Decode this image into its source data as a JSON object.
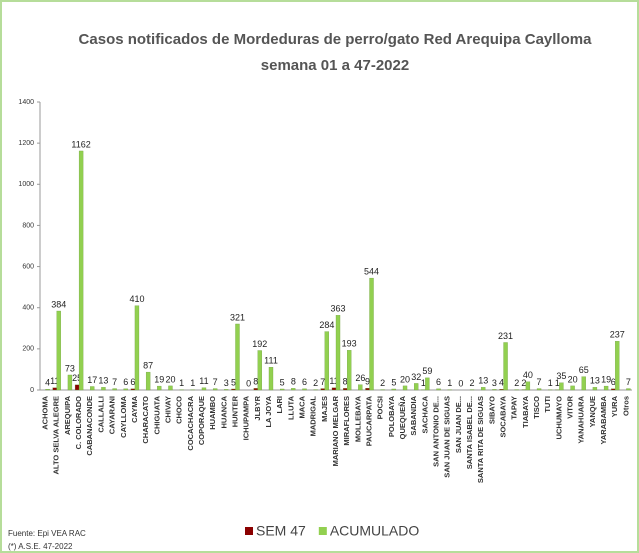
{
  "chart_data": {
    "type": "bar",
    "title": "Casos notificados de Mordeduras de perro/gato Red Arequipa Caylloma",
    "subtitle": "semana 01 a 47-2022",
    "categories": [
      "ACHOMA",
      "ALTO SELVA ALEGRE",
      "AREQUIPA",
      "C. COLORADO",
      "CABANACONDE",
      "CALLALLI",
      "CAYARANI",
      "CAYLLOMA",
      "CAYMA",
      "CHARACATO",
      "CHIGUATA",
      "CHIVAY",
      "CHOCO",
      "COCACHACRA",
      "COPORAQUE",
      "HUAMBO",
      "HUANCA",
      "HUNTER",
      "ICHUPAMPA",
      "JLBYR",
      "LA JOYA",
      "LARI",
      "LLUTA",
      "MACA",
      "MADRIGAL",
      "MAJES",
      "MARIANO MELGAR",
      "MIRAFLORES",
      "MOLLEBAYA",
      "PAUCARPATA",
      "POCSI",
      "POLOBAYA",
      "QUEQUEÑA",
      "SABANDIA",
      "SACHACA",
      "SAN ANTONIO DE...",
      "SAN JUAN DE SIGUAS",
      "SAN JUAN DE...",
      "SANTA ISABEL DE...",
      "SANTA RITA DE SIGUAS",
      "SIBAYO",
      "SOCABAYA",
      "TAPAY",
      "TIABAYA",
      "TISCO",
      "TUTI",
      "UCHUMAYO",
      "VITOR",
      "YANAHUARA",
      "YANQUE",
      "YARABAMBA",
      "YURA",
      "Otros"
    ],
    "series": [
      {
        "name": "SEM 47",
        "color": "#8b0000",
        "values": [
          null,
          11,
          null,
          25,
          null,
          null,
          null,
          null,
          6,
          null,
          null,
          null,
          null,
          null,
          null,
          null,
          null,
          5,
          null,
          8,
          null,
          null,
          null,
          null,
          null,
          7,
          11,
          8,
          null,
          9,
          null,
          null,
          null,
          null,
          1,
          null,
          null,
          null,
          null,
          null,
          null,
          4,
          null,
          2,
          null,
          null,
          1,
          null,
          null,
          null,
          null,
          6,
          null
        ]
      },
      {
        "name": "ACUMULADO",
        "color": "#92d050",
        "values": [
          4,
          384,
          73,
          1162,
          17,
          13,
          7,
          6,
          410,
          87,
          19,
          20,
          1,
          1,
          11,
          7,
          3,
          321,
          0,
          192,
          111,
          5,
          8,
          6,
          2,
          284,
          363,
          193,
          26,
          544,
          2,
          5,
          20,
          32,
          59,
          6,
          1,
          0,
          2,
          13,
          3,
          231,
          2,
          40,
          7,
          1,
          35,
          20,
          65,
          13,
          19,
          237,
          7
        ]
      }
    ],
    "ylim": [
      0,
      1400
    ],
    "yticks": [
      0,
      200,
      400,
      600,
      800,
      1000,
      1200,
      1400
    ],
    "grid": false,
    "legend": "bottom",
    "source": "Fuente: Epi VEA RAC",
    "note": "(*) A.S.E. 47-2022"
  }
}
